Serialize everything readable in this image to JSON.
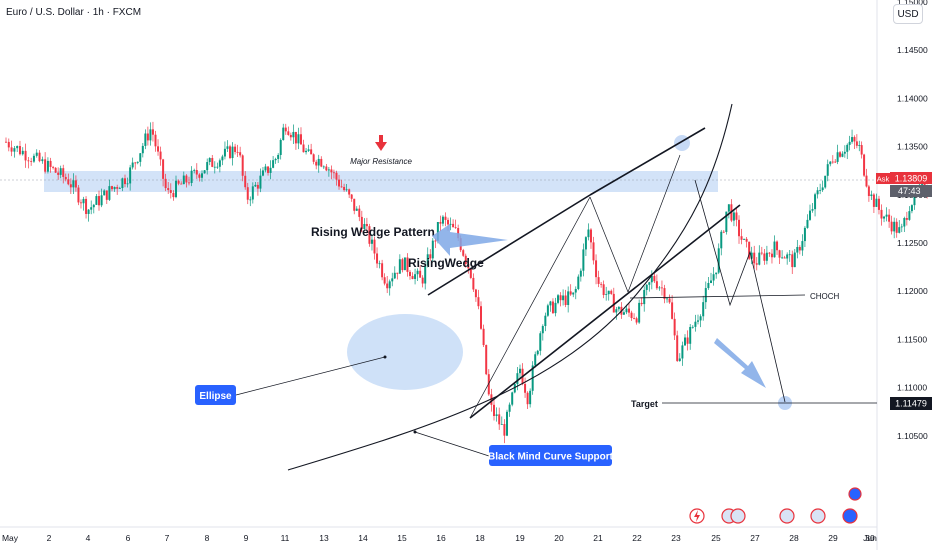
{
  "header": {
    "title": "Euro / U.S. Dollar · 1h · FXCM",
    "currency_button": "USD"
  },
  "price_tags": {
    "ask_label": "Ask",
    "ask_price": "1.13809",
    "countdown": "47:43",
    "target_price": "1.11479"
  },
  "annotations": {
    "major_resistance": "Major Resistance",
    "rising_wedge_pattern": "Rising Wedge Pattern",
    "rising_wedge": "RisingWedge",
    "ellipse": "Ellipse",
    "curve_support": "Black Mind Curve Support",
    "choch": "CHOCH",
    "target": "Target"
  },
  "chart_data": {
    "type": "candlestick",
    "symbol": "EURUSD",
    "timeframe": "1h",
    "ylim": [
      1.1015,
      1.1585
    ],
    "yticks": [
      1.105,
      1.11,
      1.115,
      1.12,
      1.125,
      1.13,
      1.135,
      1.14,
      1.145,
      1.15
    ],
    "ytick_labels": [
      "1.10500",
      "1.11000",
      "1.11500",
      "1.12000",
      "1.12500",
      "1.13000",
      "1.13500",
      "1.14000",
      "1.14500",
      "1.15000"
    ],
    "xtick_labels": [
      "May",
      "2",
      "4",
      "6",
      "7",
      "8",
      "9",
      "11",
      "13",
      "14",
      "15",
      "16",
      "18",
      "19",
      "20",
      "21",
      "22",
      "23",
      "25",
      "27",
      "28",
      "29",
      "30",
      "Jun"
    ],
    "price_path": [
      [
        0,
        1.1355
      ],
      [
        1.5,
        1.1315
      ],
      [
        2,
        1.1285
      ],
      [
        3,
        1.132
      ],
      [
        3.6,
        1.137
      ],
      [
        4,
        1.13
      ],
      [
        5,
        1.133
      ],
      [
        5.8,
        1.135
      ],
      [
        6,
        1.1295
      ],
      [
        6.8,
        1.134
      ],
      [
        7,
        1.1375
      ],
      [
        7.6,
        1.134
      ],
      [
        8,
        1.1335
      ],
      [
        8.6,
        1.13
      ],
      [
        9,
        1.127
      ],
      [
        9.6,
        1.121
      ],
      [
        10,
        1.123
      ],
      [
        10.5,
        1.121
      ],
      [
        11,
        1.1275
      ],
      [
        11.4,
        1.126
      ],
      [
        11.8,
        1.1215
      ],
      [
        12,
        1.117
      ],
      [
        12.25,
        1.108
      ],
      [
        12.6,
        1.1055
      ],
      [
        13,
        1.112
      ],
      [
        13.2,
        1.109
      ],
      [
        13.6,
        1.1175
      ],
      [
        14,
        1.119
      ],
      [
        14.4,
        1.1195
      ],
      [
        14.75,
        1.1265
      ],
      [
        15,
        1.121
      ],
      [
        15.5,
        1.118
      ],
      [
        16,
        1.1175
      ],
      [
        16.4,
        1.1215
      ],
      [
        16.8,
        1.1195
      ],
      [
        17.05,
        1.113
      ],
      [
        17.6,
        1.118
      ],
      [
        18,
        1.1225
      ],
      [
        18.3,
        1.129
      ],
      [
        18.7,
        1.125
      ],
      [
        19,
        1.123
      ],
      [
        19.5,
        1.1245
      ],
      [
        20,
        1.123
      ],
      [
        20.5,
        1.129
      ],
      [
        20.8,
        1.132
      ],
      [
        21,
        1.134
      ],
      [
        21.5,
        1.1355
      ],
      [
        21.7,
        1.135
      ],
      [
        22,
        1.13
      ],
      [
        22.3,
        1.128
      ],
      [
        22.8,
        1.126
      ],
      [
        23,
        1.129
      ],
      [
        23.4,
        1.131
      ],
      [
        24,
        1.13
      ],
      [
        24.4,
        1.137
      ],
      [
        24.7,
        1.141
      ],
      [
        25,
        1.1405
      ],
      [
        25.4,
        1.1375
      ]
    ],
    "levels": [
      {
        "name": "Major Resistance zone",
        "from": 1.1367,
        "to": 1.1388
      },
      {
        "name": "CHOCH",
        "value": 1.1261
      },
      {
        "name": "Target",
        "value": 1.11479
      }
    ]
  }
}
